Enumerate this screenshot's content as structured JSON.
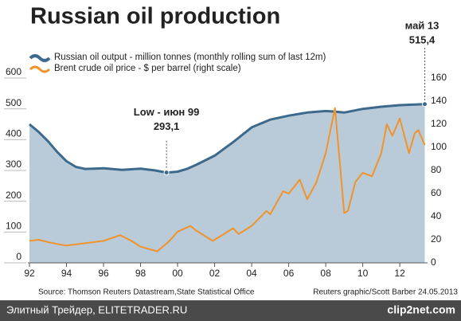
{
  "chart_data": {
    "type": "line",
    "title": "Russian oil production",
    "source": "Source: Thomson Reuters Datastream,State Statistical Office",
    "credit": "Reuters graphic/Scott Barber 24.05.2013",
    "annotations": [
      {
        "text": "Low - июн 99",
        "value_text": "293,1",
        "x": 1999.4,
        "y": 293.1
      },
      {
        "text": "май 13",
        "value_text": "515,4",
        "x": 2013.35,
        "y": 515.4
      }
    ],
    "xlim": [
      1992,
      2013.5
    ],
    "xticks": [
      {
        "value": 1992,
        "label": "92"
      },
      {
        "value": 1994,
        "label": "94"
      },
      {
        "value": 1996,
        "label": "96"
      },
      {
        "value": 1998,
        "label": "98"
      },
      {
        "value": 2000,
        "label": "00"
      },
      {
        "value": 2002,
        "label": "02"
      },
      {
        "value": 2004,
        "label": "04"
      },
      {
        "value": 2006,
        "label": "06"
      },
      {
        "value": 2008,
        "label": "08"
      },
      {
        "value": 2010,
        "label": "10"
      },
      {
        "value": 2012,
        "label": "12"
      }
    ],
    "ylim": [
      0,
      600
    ],
    "yticks": [
      0,
      100,
      200,
      300,
      400,
      500,
      600
    ],
    "y2lim": [
      0,
      160
    ],
    "y2ticks": [
      0,
      20,
      40,
      60,
      80,
      100,
      120,
      140,
      160
    ],
    "series": [
      {
        "name": "Russian oil output - million tonnes (monthly rolling sum of last 12m)",
        "color": "#3d6a8c",
        "fill": "#b9cbd8",
        "area": true,
        "x": [
          1992,
          1992.5,
          1993,
          1993.5,
          1994,
          1994.5,
          1995,
          1996,
          1997,
          1998,
          1998.8,
          1999.4,
          2000,
          2000.5,
          2001,
          2002,
          2003,
          2004,
          2005,
          2006,
          2007,
          2008,
          2008.5,
          2009,
          2010,
          2011,
          2012,
          2013.35
        ],
        "values": [
          450,
          425,
          395,
          360,
          330,
          312,
          305,
          307,
          302,
          306,
          300,
          293.1,
          296,
          305,
          318,
          348,
          392,
          440,
          465,
          478,
          488,
          493,
          491,
          488,
          500,
          507,
          512,
          515.4
        ]
      },
      {
        "name": "Brent crude oil price - $ per barrel (right scale)",
        "color": "#f0932b",
        "axis": "y2",
        "x": [
          1992,
          1992.5,
          1993,
          1993.6,
          1994,
          1995,
          1996,
          1996.9,
          1997.5,
          1998,
          1998.9,
          1999.5,
          2000,
          2000.7,
          2001,
          2001.9,
          2002.5,
          2003,
          2003.3,
          2004,
          2004.8,
          2005,
          2005.7,
          2006,
          2006.6,
          2007,
          2007.5,
          2008,
          2008.5,
          2008.8,
          2009,
          2009.2,
          2009.6,
          2010,
          2010.5,
          2011,
          2011.3,
          2011.6,
          2012,
          2012.5,
          2012.8,
          2013,
          2013.35
        ],
        "values": [
          19,
          20,
          18,
          16,
          15,
          17,
          19,
          24,
          19,
          14,
          10,
          18,
          27,
          32,
          28,
          19,
          25,
          30,
          25,
          32,
          45,
          42,
          62,
          60,
          72,
          55,
          70,
          95,
          134,
          80,
          43,
          45,
          70,
          78,
          75,
          95,
          120,
          110,
          125,
          95,
          112,
          115,
          102
        ]
      }
    ]
  },
  "footer": {
    "left": "Элитный Трейдер, ELITETRADER.RU",
    "right": "clip2net.com"
  }
}
